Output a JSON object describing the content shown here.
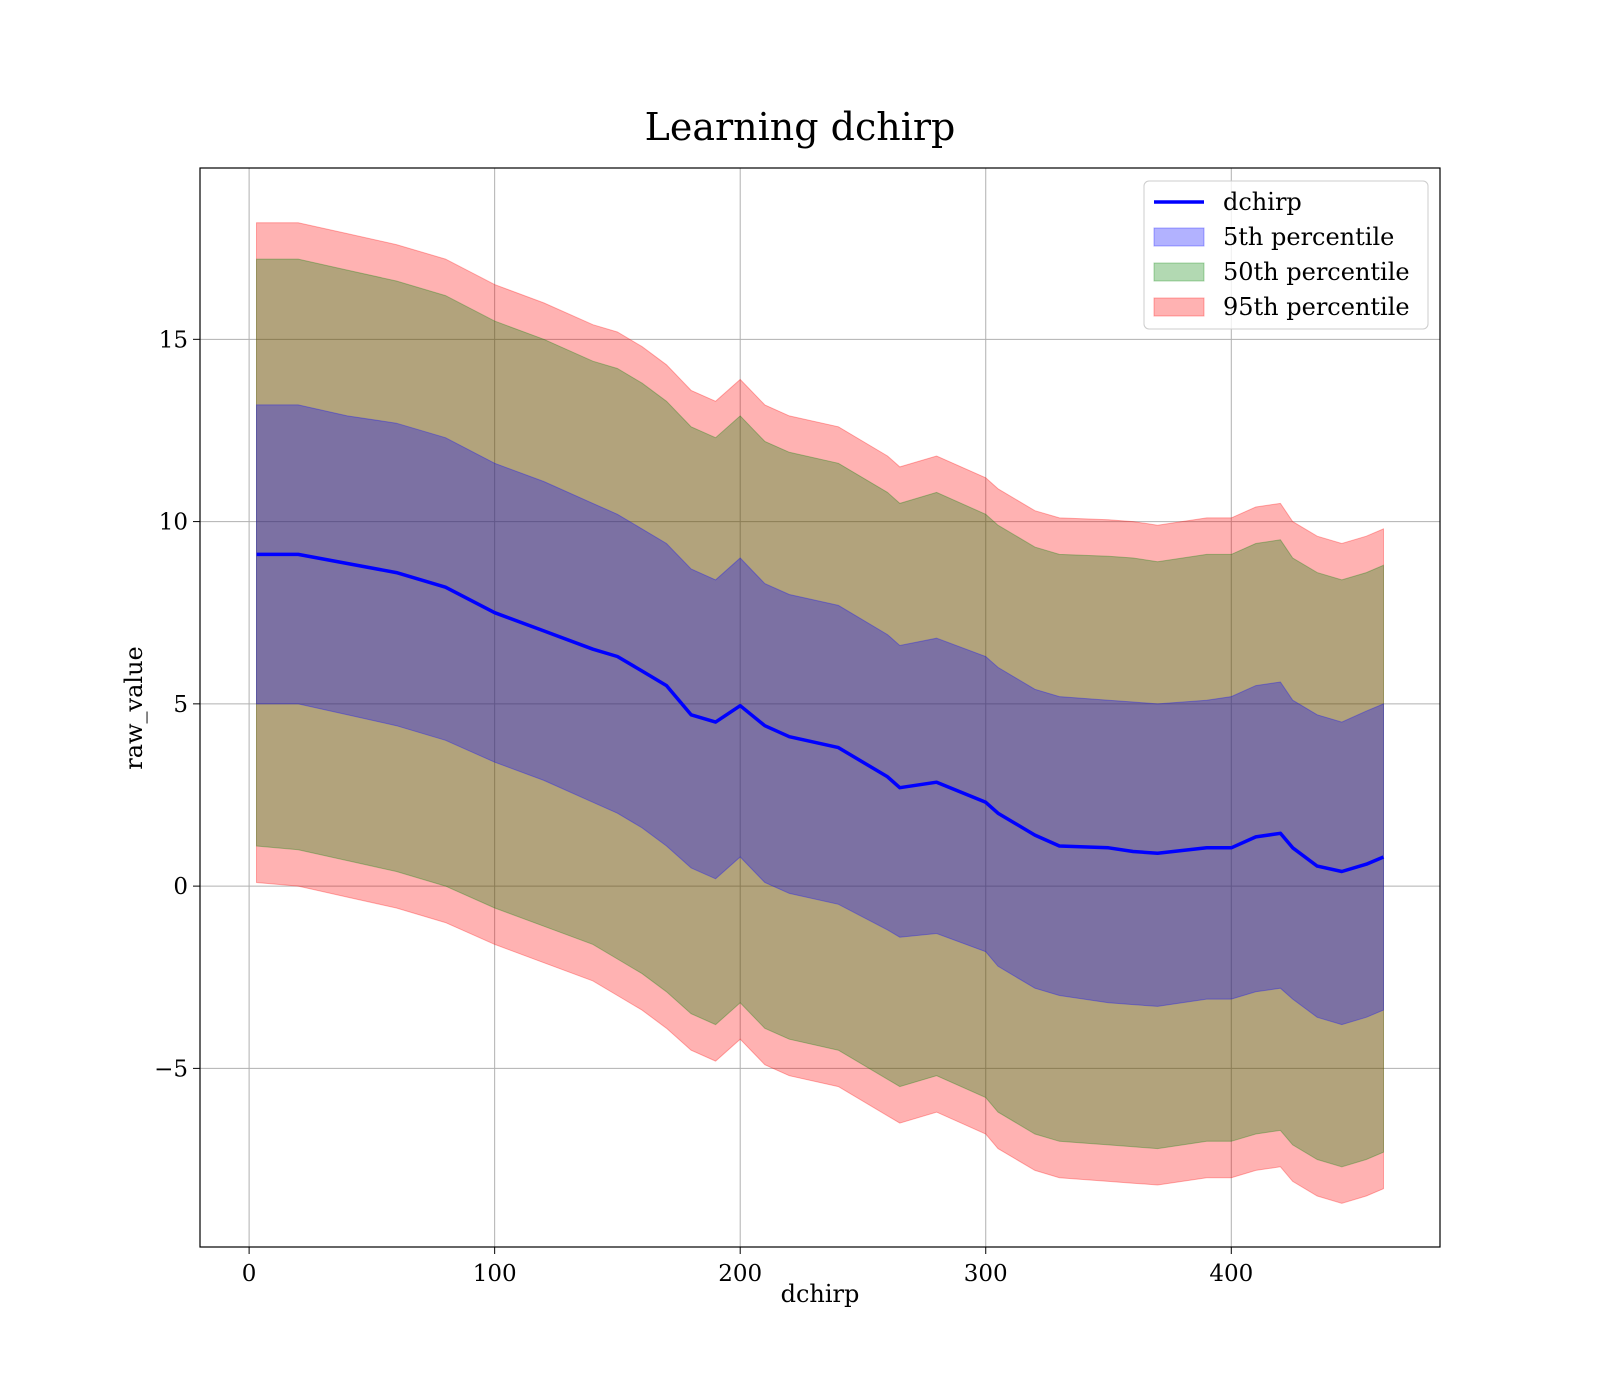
{
  "chart_data": {
    "type": "area",
    "title": "Learning dchirp",
    "xlabel": "dchirp",
    "ylabel": "raw_value",
    "xlim": [
      -20,
      485
    ],
    "ylim": [
      -9.9,
      19.7
    ],
    "xticks": [
      0,
      100,
      200,
      300,
      400
    ],
    "yticks": [
      -5,
      0,
      5,
      10,
      15
    ],
    "ytick_labels": [
      "−5",
      "0",
      "5",
      "10",
      "15"
    ],
    "grid": true,
    "legend_position": "top-right",
    "legend": [
      {
        "label": "dchirp",
        "kind": "line",
        "color": "#0000ff"
      },
      {
        "label": "5th percentile",
        "kind": "band",
        "color": "#0000ff"
      },
      {
        "label": "50th percentile",
        "kind": "band",
        "color": "#008000"
      },
      {
        "label": "95th percentile",
        "kind": "band",
        "color": "#ff0000"
      }
    ],
    "x": [
      3,
      20,
      40,
      60,
      80,
      100,
      120,
      140,
      150,
      160,
      170,
      180,
      190,
      200,
      210,
      220,
      240,
      260,
      265,
      280,
      300,
      305,
      320,
      330,
      350,
      360,
      370,
      390,
      400,
      410,
      420,
      425,
      435,
      445,
      455,
      462
    ],
    "series": [
      {
        "name": "dchirp",
        "values": [
          9.1,
          9.1,
          8.85,
          8.6,
          8.2,
          7.5,
          7.0,
          6.5,
          6.3,
          5.9,
          5.5,
          4.7,
          4.5,
          4.95,
          4.4,
          4.1,
          3.8,
          3.0,
          2.7,
          2.85,
          2.3,
          2.0,
          1.4,
          1.1,
          1.05,
          0.95,
          0.9,
          1.05,
          1.05,
          1.35,
          1.45,
          1.05,
          0.55,
          0.4,
          0.6,
          0.8
        ]
      },
      {
        "name": "5th percentile",
        "lower": [
          5.0,
          5.0,
          4.7,
          4.4,
          4.0,
          3.4,
          2.9,
          2.3,
          2.0,
          1.6,
          1.1,
          0.5,
          0.2,
          0.8,
          0.1,
          -0.2,
          -0.5,
          -1.2,
          -1.4,
          -1.3,
          -1.8,
          -2.2,
          -2.8,
          -3.0,
          -3.2,
          -3.25,
          -3.3,
          -3.1,
          -3.1,
          -2.9,
          -2.8,
          -3.1,
          -3.6,
          -3.8,
          -3.6,
          -3.4
        ],
        "upper": [
          13.2,
          13.2,
          12.9,
          12.7,
          12.3,
          11.6,
          11.1,
          10.5,
          10.2,
          9.8,
          9.4,
          8.7,
          8.4,
          9.0,
          8.3,
          8.0,
          7.7,
          6.9,
          6.6,
          6.8,
          6.3,
          6.0,
          5.4,
          5.2,
          5.1,
          5.05,
          5.0,
          5.1,
          5.2,
          5.5,
          5.6,
          5.1,
          4.7,
          4.5,
          4.8,
          5.0
        ]
      },
      {
        "name": "50th percentile",
        "lower": [
          1.1,
          1.0,
          0.7,
          0.4,
          0.0,
          -0.6,
          -1.1,
          -1.6,
          -2.0,
          -2.4,
          -2.9,
          -3.5,
          -3.8,
          -3.2,
          -3.9,
          -4.2,
          -4.5,
          -5.3,
          -5.5,
          -5.2,
          -5.8,
          -6.2,
          -6.8,
          -7.0,
          -7.1,
          -7.15,
          -7.2,
          -7.0,
          -7.0,
          -6.8,
          -6.7,
          -7.1,
          -7.5,
          -7.7,
          -7.5,
          -7.3
        ],
        "upper": [
          17.2,
          17.2,
          16.9,
          16.6,
          16.2,
          15.5,
          15.0,
          14.4,
          14.2,
          13.8,
          13.3,
          12.6,
          12.3,
          12.9,
          12.2,
          11.9,
          11.6,
          10.8,
          10.5,
          10.8,
          10.2,
          9.9,
          9.3,
          9.1,
          9.05,
          9.0,
          8.9,
          9.1,
          9.1,
          9.4,
          9.5,
          9.0,
          8.6,
          8.4,
          8.6,
          8.8
        ]
      },
      {
        "name": "95th percentile",
        "lower": [
          0.1,
          0.0,
          -0.3,
          -0.6,
          -1.0,
          -1.6,
          -2.1,
          -2.6,
          -3.0,
          -3.4,
          -3.9,
          -4.5,
          -4.8,
          -4.2,
          -4.9,
          -5.2,
          -5.5,
          -6.3,
          -6.5,
          -6.2,
          -6.8,
          -7.2,
          -7.8,
          -8.0,
          -8.1,
          -8.15,
          -8.2,
          -8.0,
          -8.0,
          -7.8,
          -7.7,
          -8.1,
          -8.5,
          -8.7,
          -8.5,
          -8.3
        ],
        "upper": [
          18.2,
          18.2,
          17.9,
          17.6,
          17.2,
          16.5,
          16.0,
          15.4,
          15.2,
          14.8,
          14.3,
          13.6,
          13.3,
          13.9,
          13.2,
          12.9,
          12.6,
          11.8,
          11.5,
          11.8,
          11.2,
          10.9,
          10.3,
          10.1,
          10.05,
          10.0,
          9.9,
          10.1,
          10.1,
          10.4,
          10.5,
          10.0,
          9.6,
          9.4,
          9.6,
          9.8
        ]
      }
    ]
  }
}
